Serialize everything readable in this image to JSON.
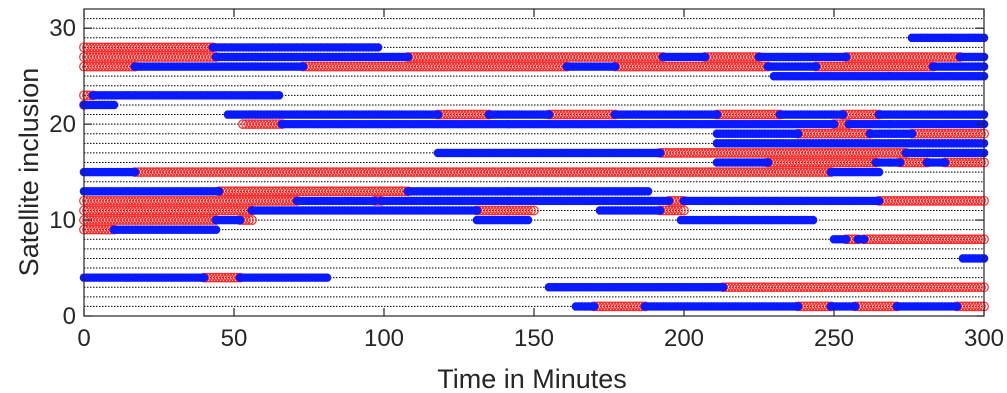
{
  "chart_data": {
    "type": "scatter",
    "title": "",
    "xlabel": "Time in Minutes",
    "ylabel": "Satellite inclusion",
    "xlim": [
      0,
      300
    ],
    "ylim": [
      0,
      32
    ],
    "xticks": [
      0,
      50,
      100,
      150,
      200,
      250,
      300
    ],
    "yticks": [
      0,
      10,
      20,
      30
    ],
    "grid": "dotted horizontal line at every integer satellite index",
    "legend": "none",
    "colors": {
      "red_marker": "#ff2a2a",
      "blue_marker": "#0a1aff",
      "axis": "#262626",
      "gridline": "#000000"
    },
    "encoding": "Each row is a satellite index; red open circles and blue filled circles are plotted at 1-minute steps over the time spans where the satellite is included.",
    "series": [
      {
        "color": "blue",
        "marker": "filled circle",
        "segments": [
          {
            "y": 1,
            "x0": 164,
            "x1": 170
          },
          {
            "y": 1,
            "x0": 187,
            "x1": 238
          },
          {
            "y": 1,
            "x0": 249,
            "x1": 257
          },
          {
            "y": 1,
            "x0": 271,
            "x1": 291
          },
          {
            "y": 3,
            "x0": 155,
            "x1": 213
          },
          {
            "y": 4,
            "x0": 0,
            "x1": 40
          },
          {
            "y": 4,
            "x0": 52,
            "x1": 81
          },
          {
            "y": 6,
            "x0": 293,
            "x1": 300
          },
          {
            "y": 8,
            "x0": 250,
            "x1": 254
          },
          {
            "y": 8,
            "x0": 258,
            "x1": 260
          },
          {
            "y": 9,
            "x0": 10,
            "x1": 44
          },
          {
            "y": 10,
            "x0": 44,
            "x1": 52
          },
          {
            "y": 10,
            "x0": 131,
            "x1": 148
          },
          {
            "y": 10,
            "x0": 199,
            "x1": 243
          },
          {
            "y": 11,
            "x0": 56,
            "x1": 131
          },
          {
            "y": 11,
            "x0": 172,
            "x1": 192
          },
          {
            "y": 12,
            "x0": 71,
            "x1": 97
          },
          {
            "y": 12,
            "x0": 99,
            "x1": 195
          },
          {
            "y": 12,
            "x0": 200,
            "x1": 265
          },
          {
            "y": 13,
            "x0": 0,
            "x1": 45
          },
          {
            "y": 13,
            "x0": 108,
            "x1": 188
          },
          {
            "y": 15,
            "x0": 0,
            "x1": 17
          },
          {
            "y": 15,
            "x0": 249,
            "x1": 265
          },
          {
            "y": 16,
            "x0": 211,
            "x1": 228
          },
          {
            "y": 16,
            "x0": 264,
            "x1": 272
          },
          {
            "y": 16,
            "x0": 281,
            "x1": 287
          },
          {
            "y": 17,
            "x0": 118,
            "x1": 192
          },
          {
            "y": 17,
            "x0": 274,
            "x1": 300
          },
          {
            "y": 18,
            "x0": 211,
            "x1": 300
          },
          {
            "y": 19,
            "x0": 211,
            "x1": 238
          },
          {
            "y": 19,
            "x0": 262,
            "x1": 276
          },
          {
            "y": 20,
            "x0": 66,
            "x1": 250
          },
          {
            "y": 20,
            "x0": 255,
            "x1": 300
          },
          {
            "y": 21,
            "x0": 48,
            "x1": 118
          },
          {
            "y": 21,
            "x0": 135,
            "x1": 155
          },
          {
            "y": 21,
            "x0": 177,
            "x1": 211
          },
          {
            "y": 21,
            "x0": 232,
            "x1": 253
          },
          {
            "y": 21,
            "x0": 265,
            "x1": 300
          },
          {
            "y": 22,
            "x0": 0,
            "x1": 10
          },
          {
            "y": 23,
            "x0": 3,
            "x1": 65
          },
          {
            "y": 25,
            "x0": 230,
            "x1": 300
          },
          {
            "y": 26,
            "x0": 17,
            "x1": 73
          },
          {
            "y": 26,
            "x0": 161,
            "x1": 177
          },
          {
            "y": 26,
            "x0": 228,
            "x1": 244
          },
          {
            "y": 26,
            "x0": 283,
            "x1": 300
          },
          {
            "y": 27,
            "x0": 44,
            "x1": 108
          },
          {
            "y": 27,
            "x0": 193,
            "x1": 207
          },
          {
            "y": 27,
            "x0": 225,
            "x1": 254
          },
          {
            "y": 27,
            "x0": 292,
            "x1": 300
          },
          {
            "y": 28,
            "x0": 43,
            "x1": 98
          },
          {
            "y": 29,
            "x0": 276,
            "x1": 300
          }
        ]
      },
      {
        "color": "red",
        "marker": "open circle",
        "segments": [
          {
            "y": 1,
            "x0": 170,
            "x1": 187
          },
          {
            "y": 1,
            "x0": 238,
            "x1": 249
          },
          {
            "y": 1,
            "x0": 257,
            "x1": 271
          },
          {
            "y": 1,
            "x0": 291,
            "x1": 300
          },
          {
            "y": 3,
            "x0": 213,
            "x1": 300
          },
          {
            "y": 4,
            "x0": 40,
            "x1": 52
          },
          {
            "y": 8,
            "x0": 254,
            "x1": 258
          },
          {
            "y": 8,
            "x0": 260,
            "x1": 300
          },
          {
            "y": 9,
            "x0": 0,
            "x1": 10
          },
          {
            "y": 10,
            "x0": 0,
            "x1": 44
          },
          {
            "y": 10,
            "x0": 52,
            "x1": 56
          },
          {
            "y": 11,
            "x0": 0,
            "x1": 56
          },
          {
            "y": 11,
            "x0": 131,
            "x1": 150
          },
          {
            "y": 11,
            "x0": 192,
            "x1": 200
          },
          {
            "y": 12,
            "x0": 0,
            "x1": 71
          },
          {
            "y": 12,
            "x0": 97,
            "x1": 99
          },
          {
            "y": 12,
            "x0": 195,
            "x1": 200
          },
          {
            "y": 12,
            "x0": 265,
            "x1": 300
          },
          {
            "y": 13,
            "x0": 45,
            "x1": 108
          },
          {
            "y": 15,
            "x0": 17,
            "x1": 249
          },
          {
            "y": 16,
            "x0": 228,
            "x1": 264
          },
          {
            "y": 16,
            "x0": 272,
            "x1": 281
          },
          {
            "y": 16,
            "x0": 287,
            "x1": 300
          },
          {
            "y": 17,
            "x0": 192,
            "x1": 274
          },
          {
            "y": 19,
            "x0": 238,
            "x1": 262
          },
          {
            "y": 19,
            "x0": 276,
            "x1": 300
          },
          {
            "y": 20,
            "x0": 53,
            "x1": 66
          },
          {
            "y": 20,
            "x0": 250,
            "x1": 255
          },
          {
            "y": 21,
            "x0": 118,
            "x1": 135
          },
          {
            "y": 21,
            "x0": 155,
            "x1": 177
          },
          {
            "y": 21,
            "x0": 211,
            "x1": 232
          },
          {
            "y": 21,
            "x0": 253,
            "x1": 265
          },
          {
            "y": 22,
            "x0": 0,
            "x1": 0
          },
          {
            "y": 23,
            "x0": 0,
            "x1": 3
          },
          {
            "y": 26,
            "x0": 0,
            "x1": 17
          },
          {
            "y": 26,
            "x0": 73,
            "x1": 161
          },
          {
            "y": 26,
            "x0": 177,
            "x1": 228
          },
          {
            "y": 26,
            "x0": 244,
            "x1": 283
          },
          {
            "y": 27,
            "x0": 0,
            "x1": 44
          },
          {
            "y": 27,
            "x0": 108,
            "x1": 193
          },
          {
            "y": 27,
            "x0": 207,
            "x1": 225
          },
          {
            "y": 27,
            "x0": 254,
            "x1": 292
          },
          {
            "y": 28,
            "x0": 0,
            "x1": 43
          }
        ]
      }
    ]
  }
}
